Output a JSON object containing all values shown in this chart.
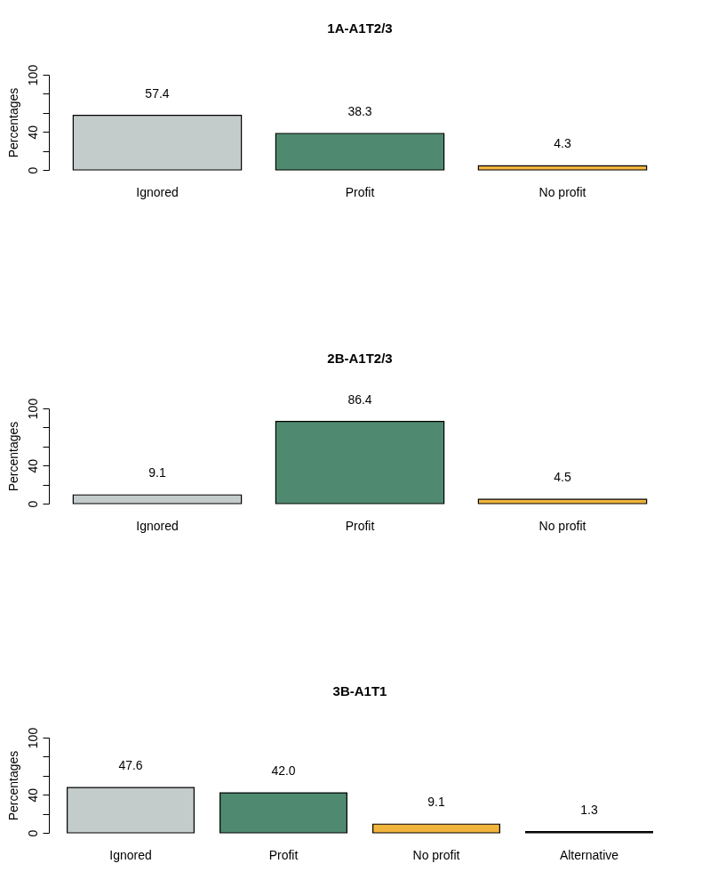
{
  "chart_data": [
    {
      "type": "bar",
      "title": "1A-A1T2/3",
      "ylabel": "Percentages",
      "categories": [
        "Ignored",
        "Profit",
        "No profit"
      ],
      "values": [
        57.4,
        38.3,
        4.3
      ],
      "colors": [
        "#c3cbcb",
        "#4f8a70",
        "#f0b43c"
      ],
      "value_labels": [
        "57.4",
        "38.3",
        "4.3"
      ],
      "ylim": [
        0,
        100
      ],
      "yticks": [
        0,
        {
          "value": 20,
          "label": null
        },
        40,
        {
          "value": 60,
          "label": null
        },
        {
          "value": 80,
          "label": null
        },
        100
      ]
    },
    {
      "type": "bar",
      "title": "2B-A1T2/3",
      "ylabel": "Percentages",
      "categories": [
        "Ignored",
        "Profit",
        "No profit"
      ],
      "values": [
        9.1,
        86.4,
        4.5
      ],
      "colors": [
        "#c3cbcb",
        "#4f8a70",
        "#f0b43c"
      ],
      "value_labels": [
        "9.1",
        "86.4",
        "4.5"
      ],
      "ylim": [
        0,
        100
      ],
      "yticks": [
        0,
        {
          "value": 20,
          "label": null
        },
        40,
        {
          "value": 60,
          "label": null
        },
        {
          "value": 80,
          "label": null
        },
        100
      ]
    },
    {
      "type": "bar",
      "title": "3B-A1T1",
      "ylabel": "Percentages",
      "categories": [
        "Ignored",
        "Profit",
        "No profit",
        "Alternative"
      ],
      "values": [
        47.6,
        42.0,
        9.1,
        1.3
      ],
      "colors": [
        "#c3cbcb",
        "#4f8a70",
        "#f0b43c",
        "#222222"
      ],
      "value_labels": [
        "47.6",
        "42.0",
        "9.1",
        "1.3"
      ],
      "ylim": [
        0,
        100
      ],
      "yticks": [
        0,
        {
          "value": 20,
          "label": null
        },
        40,
        {
          "value": 60,
          "label": null
        },
        {
          "value": 80,
          "label": null
        },
        100
      ]
    }
  ]
}
